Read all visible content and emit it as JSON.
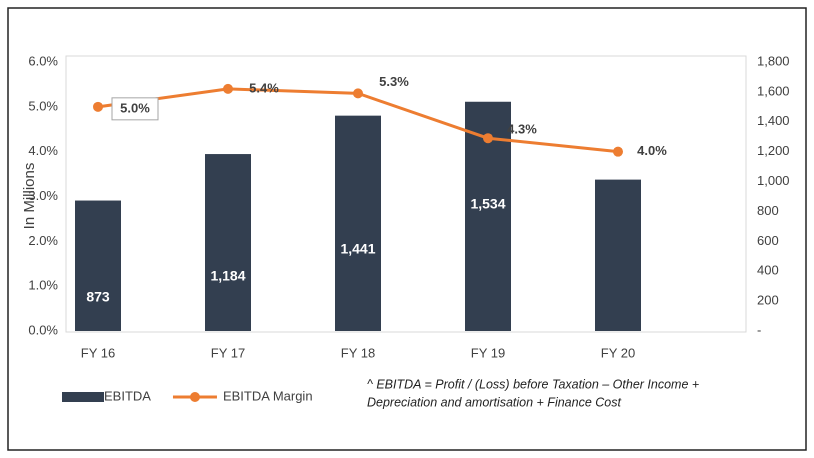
{
  "chart_data": {
    "type": "bar_line",
    "categories": [
      "FY 16",
      "FY 17",
      "FY 18",
      "FY 19",
      "FY 20"
    ],
    "ylabel": "In Millions",
    "series": [
      {
        "name": "EBITDA",
        "color": "#333f50",
        "type": "bar",
        "axis": "y2",
        "values": [
          873,
          1184,
          1441,
          1534,
          1013
        ],
        "value_labels": [
          "873",
          "1,184",
          "1,441",
          "1,534",
          null
        ]
      },
      {
        "name": "EBITDA Margin",
        "color": "#ed7d31",
        "type": "line",
        "axis": "y",
        "values": [
          5.0,
          5.4,
          5.3,
          4.3,
          4.0
        ],
        "value_labels": [
          "5.0%",
          "5.4%",
          "5.3%",
          "4.3%",
          "4.0%"
        ]
      }
    ],
    "ylim": [
      0,
      6
    ],
    "yticks": [
      {
        "value": 0,
        "label": "0.0%"
      },
      {
        "value": 1,
        "label": "1.0%"
      },
      {
        "value": 2,
        "label": "2.0%"
      },
      {
        "value": 3,
        "label": "3.0%"
      },
      {
        "value": 4,
        "label": "4.0%"
      },
      {
        "value": 5,
        "label": "5.0%"
      },
      {
        "value": 6,
        "label": "6.0%"
      }
    ],
    "y2lim": [
      0,
      1800
    ],
    "y2ticks": [
      {
        "value": 0,
        "label": "-"
      },
      200,
      400,
      600,
      800,
      {
        "value": 1000,
        "label": "1,000"
      },
      {
        "value": 1200,
        "label": "1,200"
      },
      {
        "value": 1400,
        "label": "1,400"
      },
      {
        "value": 1600,
        "label": "1,600"
      },
      {
        "value": 1800,
        "label": "1,800"
      }
    ],
    "footnote": [
      "^ EBITDA = Profit / (Loss) before Taxation – Other Income +",
      "Depreciation and amortisation + Finance Cost"
    ]
  }
}
